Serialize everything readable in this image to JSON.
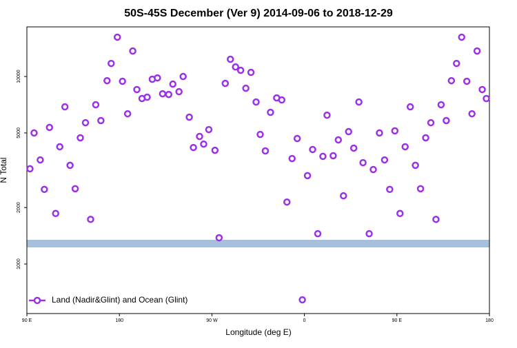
{
  "chart_data": {
    "type": "scatter",
    "title": "50S-45S December (Ver 9)   2014-09-06 to 2018-12-29",
    "xlabel": "Longitude (deg E)",
    "ylabel": "N Total",
    "xlim": [
      90,
      540
    ],
    "ylim": [
      544,
      18400
    ],
    "log_y": true,
    "xticks": [
      {
        "value": 90,
        "label": "90 E"
      },
      180,
      {
        "value": 270,
        "label": "90 W"
      },
      {
        "value": 360,
        "label": "0"
      },
      {
        "value": 450,
        "label": "90 E"
      },
      {
        "value": 540,
        "label": "180"
      }
    ],
    "yticks": [
      1000,
      2000,
      5000,
      10000
    ],
    "legend": "bottom-left",
    "series": [
      {
        "name": "Land (Nadir&Glint) and Ocean (Glint)",
        "color": "#9b30e8",
        "x": [
          93,
          97,
          103,
          107,
          112,
          118,
          122,
          127,
          132,
          137,
          142,
          147,
          152,
          157,
          162,
          168,
          172,
          178,
          183,
          188,
          193,
          197,
          202,
          207,
          212,
          217,
          222,
          228,
          232,
          238,
          242,
          248,
          252,
          258,
          262,
          267,
          273,
          277,
          283,
          288,
          293,
          298,
          303,
          308,
          313,
          317,
          322,
          327,
          333,
          338,
          343,
          348,
          353,
          358,
          363,
          368,
          373,
          378,
          382,
          388,
          393,
          398,
          403,
          408,
          413,
          417,
          423,
          427,
          433,
          438,
          443,
          448,
          453,
          458,
          463,
          468,
          473,
          478,
          483,
          488,
          493,
          498,
          503,
          508,
          513,
          518,
          523,
          528,
          533,
          537
        ],
        "values": [
          3220,
          5000,
          3590,
          2500,
          5350,
          1860,
          4220,
          6890,
          3360,
          2520,
          4710,
          5670,
          1730,
          7070,
          5820,
          9500,
          11740,
          16210,
          9430,
          6330,
          13680,
          8520,
          7630,
          7760,
          9670,
          9830,
          8090,
          8020,
          9110,
          8300,
          10000,
          6070,
          4180,
          4790,
          4360,
          5210,
          4040,
          1380,
          9190,
          12360,
          11250,
          10790,
          8660,
          10520,
          7310,
          4910,
          4010,
          6440,
          7690,
          7500,
          2140,
          3650,
          4670,
          644,
          2960,
          4080,
          1450,
          3750,
          6220,
          3780,
          4590,
          2310,
          5080,
          4150,
          7310,
          3470,
          1450,
          3190,
          5000,
          3590,
          2500,
          5130,
          1860,
          4220,
          6890,
          3360,
          2520,
          4710,
          5670,
          1730,
          7070,
          5820,
          9500,
          11740,
          16210,
          9430,
          6330,
          13680,
          8520,
          7630
        ]
      }
    ]
  }
}
